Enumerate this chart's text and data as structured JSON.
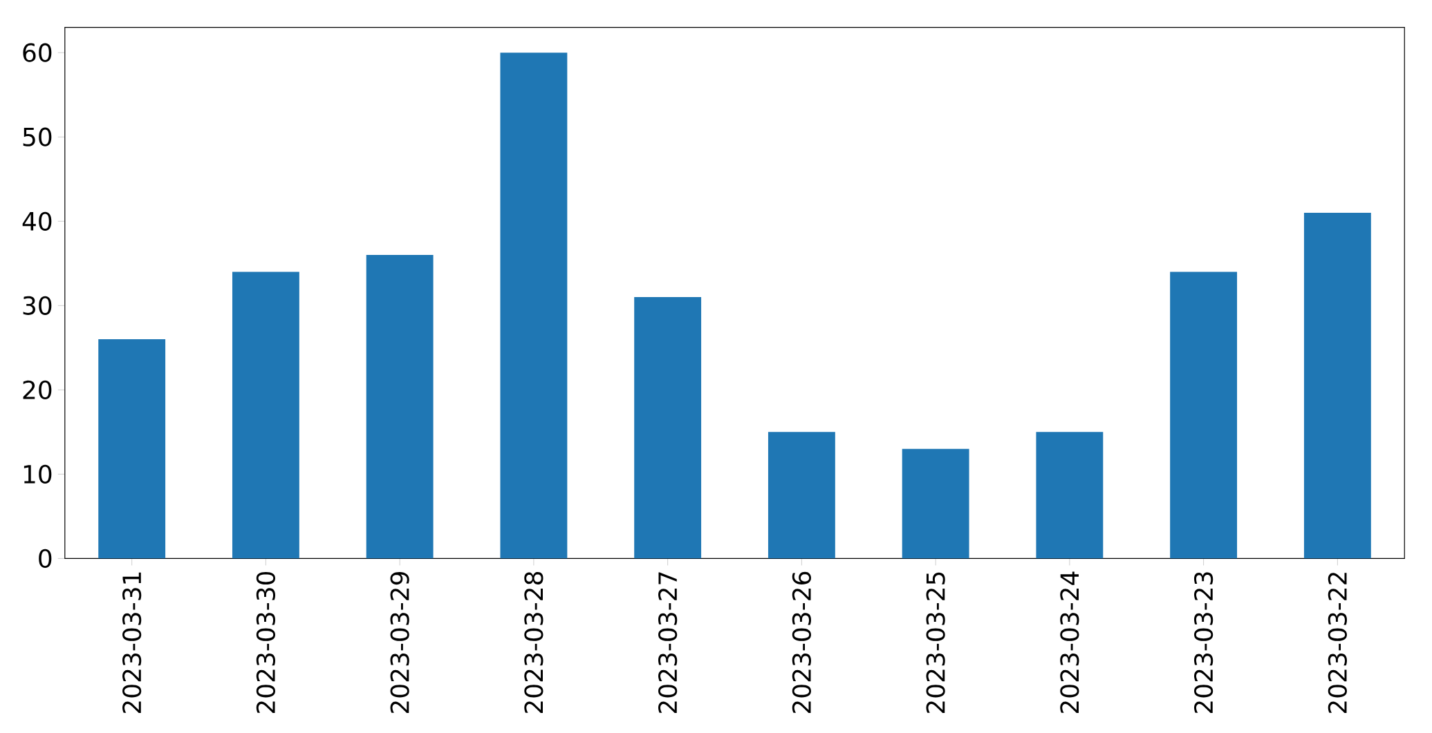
{
  "chart_data": {
    "type": "bar",
    "categories": [
      "2023-03-31",
      "2023-03-30",
      "2023-03-29",
      "2023-03-28",
      "2023-03-27",
      "2023-03-26",
      "2023-03-25",
      "2023-03-24",
      "2023-03-23",
      "2023-03-22"
    ],
    "values": [
      26,
      34,
      36,
      60,
      31,
      15,
      13,
      15,
      34,
      41
    ],
    "color": "#1f77b4",
    "ylim": [
      0,
      63
    ],
    "yticks": [
      0,
      10,
      20,
      30,
      40,
      50,
      60
    ]
  }
}
